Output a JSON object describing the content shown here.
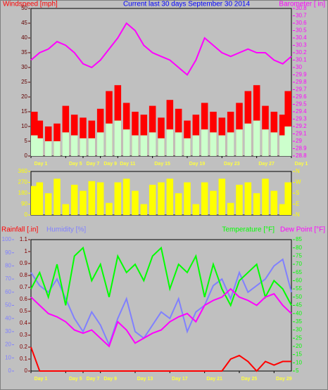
{
  "chart_data": [
    {
      "type": "bar",
      "ylabel": "Windspeed [mph]",
      "title": "Current last 30 days September 30 2014",
      "y2label": "Barometer [ in]",
      "x": [
        0,
        1,
        2,
        3,
        4,
        5,
        6,
        7,
        8,
        9,
        10,
        11,
        12,
        13,
        14,
        15,
        16,
        17,
        18,
        19,
        20,
        21,
        22,
        23,
        24,
        25,
        26,
        27,
        28,
        29,
        30
      ],
      "xlim": [
        0,
        30
      ],
      "xticks": [
        {
          "value": 0,
          "label": "Day 1"
        },
        {
          "value": 4,
          "label": "Day 5"
        },
        {
          "value": 6,
          "label": "Day 7"
        },
        {
          "value": 8,
          "label": "Day 9"
        },
        {
          "value": 10,
          "label": "Day 11"
        },
        {
          "value": 14,
          "label": "Day 15"
        },
        {
          "value": 18,
          "label": "Day 19"
        },
        {
          "value": 22,
          "label": "Day 23"
        },
        {
          "value": 26,
          "label": "Day 27"
        },
        {
          "value": 30,
          "label": "Day 1"
        }
      ],
      "ylim": [
        0,
        50
      ],
      "yticks": [
        0,
        5,
        10,
        15,
        20,
        25,
        30,
        35,
        40,
        45,
        50
      ],
      "y2lim": [
        28.8,
        30.8
      ],
      "y2ticks": [
        28.8,
        28.9,
        29,
        29.1,
        29.2,
        29.3,
        29.4,
        29.5,
        29.6,
        29.7,
        29.8,
        29.9,
        30,
        30.1,
        30.2,
        30.3,
        30.4,
        30.5,
        30.6,
        30.7,
        30.8
      ],
      "series": [
        {
          "color": "#ff0000",
          "kind": "bar",
          "values": [
            15,
            12,
            10,
            11,
            17,
            14,
            13,
            12,
            16,
            22,
            24,
            18,
            15,
            14,
            17,
            13,
            19,
            16,
            12,
            14,
            18,
            15,
            13,
            15,
            18,
            22,
            24,
            17,
            15,
            14,
            22
          ]
        },
        {
          "color": "#ccffcc",
          "kind": "bar",
          "values": [
            7,
            6,
            5,
            5,
            8,
            7,
            6,
            6,
            8,
            11,
            12,
            9,
            7,
            7,
            8,
            6,
            9,
            8,
            6,
            7,
            9,
            8,
            7,
            8,
            9,
            11,
            12,
            9,
            8,
            7,
            10
          ]
        },
        {
          "color": "#ff00ff",
          "kind": "line",
          "axis": "y2",
          "values": [
            30.1,
            30.2,
            30.25,
            30.35,
            30.3,
            30.2,
            30.05,
            30.0,
            30.1,
            30.25,
            30.4,
            30.6,
            30.5,
            30.3,
            30.2,
            30.15,
            30.1,
            30.0,
            29.9,
            30.1,
            30.4,
            30.3,
            30.2,
            30.15,
            30.2,
            30.25,
            30.2,
            30.2,
            30.1,
            30.05,
            30.15
          ]
        }
      ]
    },
    {
      "type": "bar",
      "x": [
        0,
        1,
        2,
        3,
        4,
        5,
        6,
        7,
        8,
        9,
        10,
        11,
        12,
        13,
        14,
        15,
        16,
        17,
        18,
        19,
        20,
        21,
        22,
        23,
        24,
        25,
        26,
        27,
        28,
        29,
        30
      ],
      "xlim": [
        0,
        30
      ],
      "ylim": [
        0,
        360
      ],
      "yticks": [
        0,
        90,
        180,
        270,
        360
      ],
      "y2lim": [
        0,
        360
      ],
      "y2ticks": [
        {
          "value": 0,
          "label": "N"
        },
        {
          "value": 90,
          "label": "E"
        },
        {
          "value": 180,
          "label": "S"
        },
        {
          "value": 270,
          "label": "W"
        },
        {
          "value": 360,
          "label": "N"
        }
      ],
      "series": [
        {
          "color": "#ffff00",
          "kind": "bar",
          "values": [
            240,
            270,
            180,
            300,
            90,
            250,
            200,
            280,
            270,
            100,
            270,
            300,
            200,
            90,
            250,
            270,
            300,
            180,
            270,
            90,
            270,
            200,
            300,
            100,
            250,
            270,
            180,
            300,
            200,
            90,
            270
          ]
        }
      ]
    },
    {
      "type": "line",
      "ylabel": "Rainfall [.in]",
      "y3label": "Humidity [%]",
      "y2label": [
        "Temperature [°F]",
        "Dew Point [°F]"
      ],
      "x": [
        0,
        1,
        2,
        3,
        4,
        5,
        6,
        7,
        8,
        9,
        10,
        11,
        12,
        13,
        14,
        15,
        16,
        17,
        18,
        19,
        20,
        21,
        22,
        23,
        24,
        25,
        26,
        27,
        28,
        29,
        30
      ],
      "xlim": [
        0,
        30
      ],
      "xticks": [
        {
          "value": 0,
          "label": "Day 1"
        },
        {
          "value": 4,
          "label": "Day 5"
        },
        {
          "value": 6,
          "label": "Day 7"
        },
        {
          "value": 8,
          "label": "Day 9"
        },
        {
          "value": 12,
          "label": "Day 13"
        },
        {
          "value": 16,
          "label": "Day 17"
        },
        {
          "value": 20,
          "label": "Day 21"
        },
        {
          "value": 24,
          "label": "Day 25"
        },
        {
          "value": 28,
          "label": "Day 29"
        }
      ],
      "ylim": [
        0,
        1.1
      ],
      "yticks": [
        0,
        0.1,
        0.2,
        0.3,
        0.4,
        0.5,
        0.6,
        0.7,
        0.8,
        0.9,
        1,
        1.1
      ],
      "y3lim": [
        0,
        100
      ],
      "y3ticks": [
        0,
        10,
        20,
        30,
        40,
        50,
        60,
        70,
        80,
        90,
        100
      ],
      "y2lim": [
        5,
        85
      ],
      "y2ticks": [
        5,
        10,
        15,
        20,
        25,
        30,
        35,
        40,
        45,
        50,
        55,
        60,
        65,
        70,
        75,
        80,
        85
      ],
      "series": [
        {
          "color": "#8080ff",
          "kind": "line",
          "axis": "y3",
          "values": [
            75,
            65,
            60,
            70,
            55,
            40,
            30,
            45,
            35,
            20,
            40,
            55,
            30,
            25,
            35,
            45,
            40,
            55,
            30,
            45,
            50,
            65,
            70,
            55,
            75,
            60,
            65,
            70,
            80,
            85,
            60
          ]
        },
        {
          "color": "#00ff00",
          "kind": "line",
          "axis": "y2",
          "values": [
            55,
            65,
            50,
            70,
            45,
            75,
            80,
            60,
            70,
            50,
            75,
            65,
            70,
            60,
            75,
            80,
            55,
            70,
            65,
            75,
            50,
            70,
            55,
            45,
            60,
            65,
            70,
            50,
            60,
            55,
            45
          ]
        },
        {
          "color": "#ff00ff",
          "kind": "line",
          "axis": "y2",
          "values": [
            50,
            45,
            40,
            38,
            35,
            30,
            28,
            30,
            25,
            20,
            35,
            30,
            22,
            25,
            28,
            30,
            35,
            38,
            40,
            35,
            45,
            48,
            50,
            55,
            50,
            48,
            45,
            50,
            52,
            45,
            40
          ]
        },
        {
          "color": "#ff0000",
          "kind": "line",
          "values": [
            0.2,
            0,
            0,
            0,
            0,
            0,
            0,
            0,
            0,
            0,
            0,
            0,
            0,
            0,
            0,
            0,
            0,
            0,
            0,
            0,
            0,
            0,
            0,
            0.1,
            0.13,
            0.08,
            0,
            0.08,
            0.05,
            0.08,
            0.08
          ]
        }
      ]
    }
  ]
}
